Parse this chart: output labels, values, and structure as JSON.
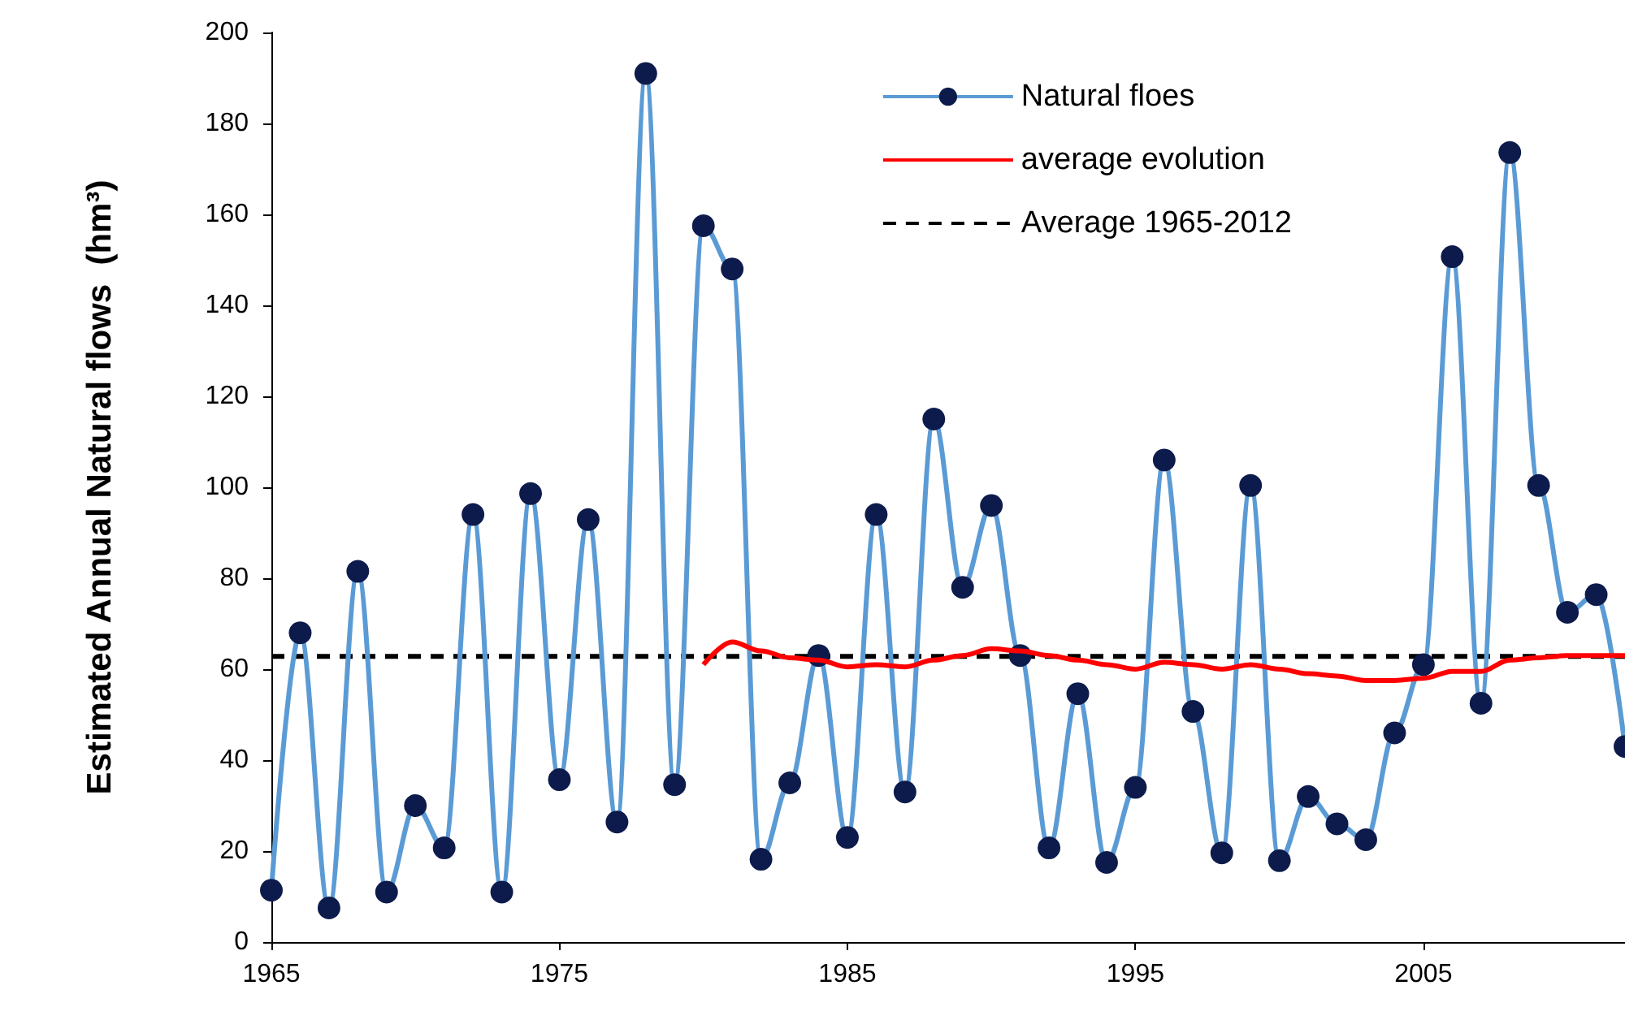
{
  "chart_data": {
    "type": "line",
    "ylabel": "Estimated Annual Natural flows  (hm³)",
    "xlim": [
      1965,
      2012
    ],
    "xticks": [
      1965,
      1975,
      1985,
      1995,
      2005
    ],
    "ylim": [
      0,
      200
    ],
    "yticks": [
      0,
      20,
      40,
      60,
      80,
      100,
      120,
      140,
      160,
      180,
      200
    ],
    "grid": false,
    "legend": "top right",
    "marker": "circle",
    "series": [
      {
        "name": "Natural floes",
        "color": "#5b9bd5",
        "x": [
          1965,
          1966,
          1967,
          1968,
          1969,
          1970,
          1971,
          1972,
          1973,
          1974,
          1975,
          1976,
          1977,
          1978,
          1979,
          1980,
          1981,
          1982,
          1983,
          1984,
          1985,
          1986,
          1987,
          1988,
          1989,
          1990,
          1991,
          1992,
          1993,
          1994,
          1995,
          1996,
          1997,
          1998,
          1999,
          2000,
          2001,
          2002,
          2003,
          2004,
          2005,
          2006,
          2007,
          2008,
          2009,
          2010,
          2011,
          2012
        ],
        "values": [
          11.4,
          68,
          7.5,
          81.5,
          11,
          30,
          20.7,
          94,
          11,
          98.6,
          35.7,
          92.9,
          26.4,
          191,
          34.6,
          157.5,
          148,
          18.2,
          35,
          63,
          23,
          94,
          33,
          115,
          78,
          96,
          63,
          20.7,
          54.6,
          17.5,
          34,
          106,
          50.7,
          19.6,
          100.4,
          17.9,
          32,
          26,
          22.5,
          46,
          61,
          150.7,
          52.5,
          173.6,
          100.4,
          72.5,
          76.4,
          43
        ]
      },
      {
        "name": "average evolution",
        "color": "#ff0000",
        "marker": "none",
        "x": [
          1980,
          1981,
          1982,
          1983,
          1984,
          1985,
          1986,
          1987,
          1988,
          1989,
          1990,
          1991,
          1992,
          1993,
          1994,
          1995,
          1996,
          1997,
          1998,
          1999,
          2000,
          2001,
          2002,
          2003,
          2004,
          2005,
          2006,
          2007,
          2008,
          2009,
          2010,
          2011,
          2012
        ],
        "values": [
          61,
          66,
          64,
          62.5,
          62,
          60.5,
          61,
          60.5,
          62,
          63,
          64.5,
          64,
          63,
          62,
          61,
          60,
          61.5,
          61,
          60,
          61,
          60,
          59,
          58.5,
          57.5,
          57.5,
          58,
          59.5,
          59.5,
          62,
          62.5,
          63,
          63,
          63
        ]
      }
    ],
    "ref_lines": [
      {
        "axis": "y",
        "value": 62.8,
        "label": "Average 1965-2012",
        "color": "#000000",
        "line_style": "dashed"
      }
    ]
  }
}
